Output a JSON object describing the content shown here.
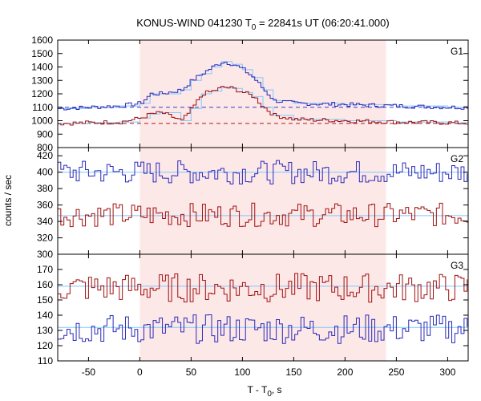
{
  "title": {
    "main": "KONUS-WIND 041230 T",
    "sub": "0",
    "rest": " = 22841s UT (06:20:41.000)"
  },
  "ylabel": "counts / sec",
  "xlabel": {
    "main": "T - T",
    "sub": "0",
    "rest": ", s"
  },
  "colors": {
    "blue_series": "#2a2ab8",
    "red_series": "#a01010",
    "fit_line": "#7fc8ff",
    "highlight": "#fde8e8",
    "dashed_blue": "#3a3acc",
    "dashed_red": "#b01818"
  },
  "chart_data": [
    {
      "panel": "G1",
      "type": "line",
      "step": true,
      "xlim": [
        -80,
        320
      ],
      "ylim": [
        800,
        1600
      ],
      "yticks": [
        800,
        900,
        1000,
        1100,
        1200,
        1300,
        1400,
        1500,
        1600
      ],
      "highlight_interval": [
        0,
        240
      ],
      "background_levels": [
        {
          "series": "blue",
          "value": 1100,
          "style": "dashed"
        },
        {
          "series": "red",
          "value": 980,
          "style": "dashed"
        }
      ],
      "series": [
        {
          "color": "blue",
          "points": [
            [
              -80,
              1090
            ],
            [
              -50,
              1100
            ],
            [
              -20,
              1110
            ],
            [
              0,
              1130
            ],
            [
              10,
              1200
            ],
            [
              20,
              1200
            ],
            [
              40,
              1230
            ],
            [
              50,
              1300
            ],
            [
              60,
              1350
            ],
            [
              70,
              1400
            ],
            [
              80,
              1440
            ],
            [
              90,
              1420
            ],
            [
              100,
              1380
            ],
            [
              110,
              1320
            ],
            [
              120,
              1230
            ],
            [
              130,
              1150
            ],
            [
              150,
              1130
            ],
            [
              200,
              1120
            ],
            [
              250,
              1110
            ],
            [
              300,
              1100
            ],
            [
              320,
              1100
            ]
          ]
        },
        {
          "color": "red",
          "points": [
            [
              -80,
              980
            ],
            [
              -50,
              985
            ],
            [
              -20,
              990
            ],
            [
              0,
              1020
            ],
            [
              10,
              1050
            ],
            [
              20,
              1060
            ],
            [
              40,
              1000
            ],
            [
              50,
              1090
            ],
            [
              60,
              1200
            ],
            [
              70,
              1220
            ],
            [
              80,
              1250
            ],
            [
              90,
              1240
            ],
            [
              100,
              1210
            ],
            [
              110,
              1180
            ],
            [
              120,
              1100
            ],
            [
              130,
              1040
            ],
            [
              150,
              1010
            ],
            [
              200,
              1000
            ],
            [
              250,
              990
            ],
            [
              300,
              985
            ],
            [
              320,
              980
            ]
          ]
        }
      ]
    },
    {
      "panel": "G2",
      "type": "line",
      "step": true,
      "xlim": [
        -80,
        320
      ],
      "ylim": [
        300,
        430
      ],
      "yticks": [
        300,
        320,
        340,
        360,
        380,
        400,
        420
      ],
      "highlight_interval": [
        0,
        240
      ],
      "background_levels": [
        {
          "series": "blue",
          "value": 400
        },
        {
          "series": "red",
          "value": 347
        }
      ],
      "series": [
        {
          "color": "blue",
          "mean": 400,
          "noise": 12
        },
        {
          "color": "red",
          "mean": 348,
          "noise": 12
        }
      ]
    },
    {
      "panel": "G3",
      "type": "line",
      "step": true,
      "xlim": [
        -80,
        320
      ],
      "ylim": [
        110,
        180
      ],
      "yticks": [
        110,
        120,
        130,
        140,
        150,
        160,
        170
      ],
      "xticks": [
        -50,
        0,
        50,
        100,
        150,
        200,
        250,
        300
      ],
      "highlight_interval": [
        0,
        240
      ],
      "background_levels": [
        {
          "series": "blue",
          "value": 132
        },
        {
          "series": "red",
          "value": 159
        }
      ],
      "series": [
        {
          "color": "blue",
          "mean": 131,
          "noise": 8
        },
        {
          "color": "red",
          "mean": 158,
          "noise": 8
        }
      ]
    }
  ]
}
